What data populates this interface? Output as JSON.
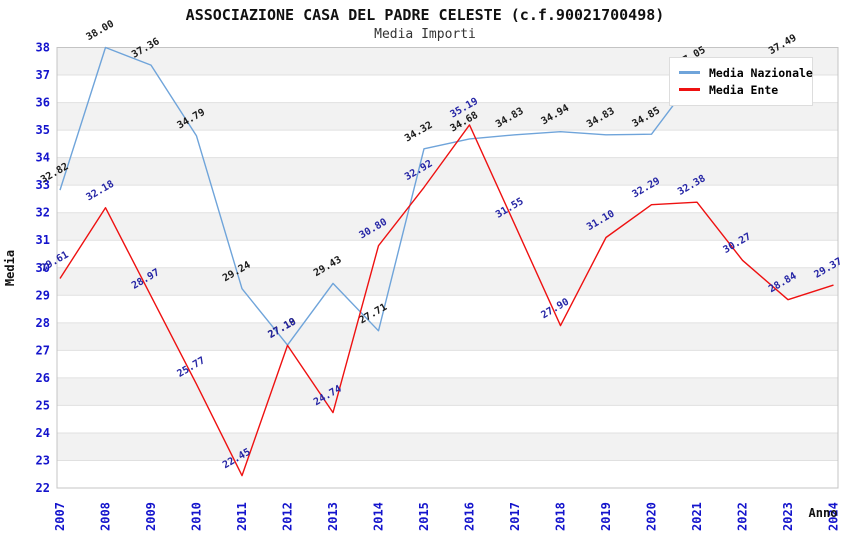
{
  "page": {
    "background": "#ffffff"
  },
  "header": {
    "title": "ASSOCIAZIONE CASA DEL PADRE CELESTE (c.f.90021700498)",
    "subtitle": "Media Importi"
  },
  "legend": {
    "items": [
      {
        "label": "Media Nazionale",
        "color": "#6FA4DA"
      },
      {
        "label": "Media Ente",
        "color": "#EE1111"
      }
    ]
  },
  "chart_data": {
    "type": "line",
    "title": "ASSOCIAZIONE CASA DEL PADRE CELESTE (c.f.90021700498)",
    "subtitle": "Media Importi",
    "xlabel": "Anno",
    "ylabel": "Media",
    "ylim": [
      22,
      38
    ],
    "y_ticks": [
      22,
      23,
      24,
      25,
      26,
      27,
      28,
      29,
      30,
      31,
      32,
      33,
      34,
      35,
      36,
      37,
      38
    ],
    "grid": "horizontal gridlines each unit, alternating white/gray bands",
    "legend_position": "top-right",
    "axis_tick_color": "#1414CC",
    "band_color": "#f2f2f2",
    "x_categories": [
      "2007",
      "2008",
      "2009",
      "2010",
      "2011",
      "2012",
      "2013",
      "2014",
      "2015",
      "2016",
      "2017",
      "2018",
      "2019",
      "2020",
      "2021",
      "2022",
      "2023",
      "2024"
    ],
    "series": [
      {
        "name": "Media Nazionale",
        "color": "#6FA4DA",
        "label_color": "#1a1a1a",
        "values": [
          32.82,
          38.0,
          37.36,
          34.79,
          29.24,
          27.19,
          29.43,
          27.71,
          34.32,
          34.68,
          34.83,
          34.94,
          34.83,
          34.85,
          37.05,
          null,
          37.49,
          null
        ]
      },
      {
        "name": "Media Ente",
        "color": "#EE1111",
        "label_color": "#2525A5",
        "values": [
          29.61,
          32.18,
          28.97,
          25.77,
          22.45,
          27.18,
          24.74,
          30.8,
          32.92,
          35.19,
          31.55,
          27.9,
          31.1,
          32.29,
          32.38,
          30.27,
          28.84,
          29.37
        ]
      }
    ]
  }
}
